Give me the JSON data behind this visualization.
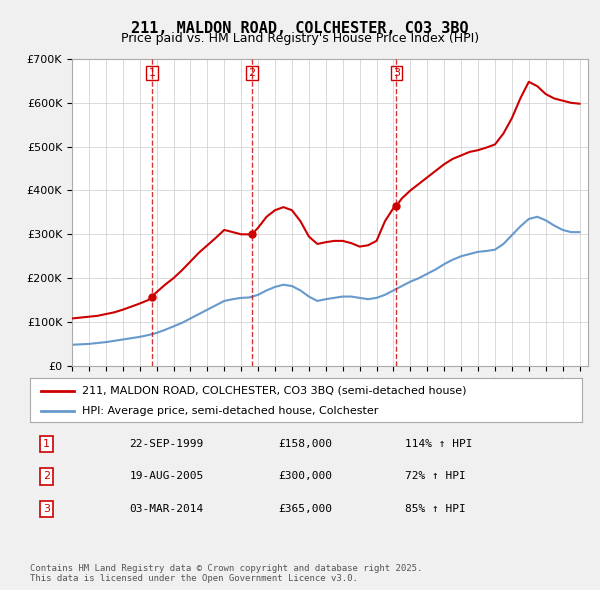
{
  "title": "211, MALDON ROAD, COLCHESTER, CO3 3BQ",
  "subtitle": "Price paid vs. HM Land Registry's House Price Index (HPI)",
  "legend_red": "211, MALDON ROAD, COLCHESTER, CO3 3BQ (semi-detached house)",
  "legend_blue": "HPI: Average price, semi-detached house, Colchester",
  "footer": "Contains HM Land Registry data © Crown copyright and database right 2025.\nThis data is licensed under the Open Government Licence v3.0.",
  "transactions": [
    {
      "num": 1,
      "date": "22-SEP-1999",
      "price": 158000,
      "hpi": "114% ↑ HPI",
      "year": 1999.73
    },
    {
      "num": 2,
      "date": "19-AUG-2005",
      "price": 300000,
      "hpi": "72% ↑ HPI",
      "year": 2005.63
    },
    {
      "num": 3,
      "date": "03-MAR-2014",
      "price": 365000,
      "hpi": "85% ↑ HPI",
      "year": 2014.17
    }
  ],
  "red_line": {
    "x": [
      1995.0,
      1995.5,
      1996.0,
      1996.5,
      1997.0,
      1997.5,
      1998.0,
      1998.5,
      1999.0,
      1999.5,
      1999.73,
      2000.0,
      2000.5,
      2001.0,
      2001.5,
      2002.0,
      2002.5,
      2003.0,
      2003.5,
      2004.0,
      2004.5,
      2005.0,
      2005.5,
      2005.63,
      2006.0,
      2006.5,
      2007.0,
      2007.5,
      2008.0,
      2008.5,
      2009.0,
      2009.5,
      2010.0,
      2010.5,
      2011.0,
      2011.5,
      2012.0,
      2012.5,
      2013.0,
      2013.5,
      2014.0,
      2014.17,
      2014.5,
      2015.0,
      2015.5,
      2016.0,
      2016.5,
      2017.0,
      2017.5,
      2018.0,
      2018.5,
      2019.0,
      2019.5,
      2020.0,
      2020.5,
      2021.0,
      2021.5,
      2022.0,
      2022.5,
      2023.0,
      2023.5,
      2024.0,
      2024.5,
      2025.0
    ],
    "y": [
      108000,
      110000,
      112000,
      114000,
      118000,
      122000,
      128000,
      135000,
      142000,
      150000,
      158000,
      168000,
      185000,
      200000,
      218000,
      238000,
      258000,
      275000,
      292000,
      310000,
      305000,
      300000,
      300000,
      300000,
      315000,
      340000,
      355000,
      362000,
      355000,
      330000,
      295000,
      278000,
      282000,
      285000,
      285000,
      280000,
      272000,
      275000,
      285000,
      330000,
      360000,
      365000,
      382000,
      400000,
      415000,
      430000,
      445000,
      460000,
      472000,
      480000,
      488000,
      492000,
      498000,
      505000,
      530000,
      565000,
      610000,
      648000,
      638000,
      620000,
      610000,
      605000,
      600000,
      598000
    ]
  },
  "blue_line": {
    "x": [
      1995.0,
      1995.5,
      1996.0,
      1996.5,
      1997.0,
      1997.5,
      1998.0,
      1998.5,
      1999.0,
      1999.5,
      2000.0,
      2000.5,
      2001.0,
      2001.5,
      2002.0,
      2002.5,
      2003.0,
      2003.5,
      2004.0,
      2004.5,
      2005.0,
      2005.5,
      2006.0,
      2006.5,
      2007.0,
      2007.5,
      2008.0,
      2008.5,
      2009.0,
      2009.5,
      2010.0,
      2010.5,
      2011.0,
      2011.5,
      2012.0,
      2012.5,
      2013.0,
      2013.5,
      2014.0,
      2014.5,
      2015.0,
      2015.5,
      2016.0,
      2016.5,
      2017.0,
      2017.5,
      2018.0,
      2018.5,
      2019.0,
      2019.5,
      2020.0,
      2020.5,
      2021.0,
      2021.5,
      2022.0,
      2022.5,
      2023.0,
      2023.5,
      2024.0,
      2024.5,
      2025.0
    ],
    "y": [
      48000,
      49000,
      50000,
      52000,
      54000,
      57000,
      60000,
      63000,
      66000,
      70000,
      75000,
      82000,
      90000,
      98000,
      108000,
      118000,
      128000,
      138000,
      148000,
      152000,
      155000,
      156000,
      162000,
      172000,
      180000,
      185000,
      182000,
      172000,
      158000,
      148000,
      152000,
      155000,
      158000,
      158000,
      155000,
      152000,
      155000,
      162000,
      172000,
      182000,
      192000,
      200000,
      210000,
      220000,
      232000,
      242000,
      250000,
      255000,
      260000,
      262000,
      265000,
      278000,
      298000,
      318000,
      335000,
      340000,
      332000,
      320000,
      310000,
      305000,
      305000
    ]
  },
  "vline_x": [
    1999.73,
    2005.63,
    2014.17
  ],
  "ylim": [
    0,
    700000
  ],
  "xlim": [
    1995.0,
    2025.5
  ],
  "yticks": [
    0,
    100000,
    200000,
    300000,
    400000,
    500000,
    600000,
    700000
  ],
  "ytick_labels": [
    "£0",
    "£100K",
    "£200K",
    "£300K",
    "£400K",
    "£500K",
    "£600K",
    "£700K"
  ],
  "background_color": "#f0f0f0",
  "plot_bg_color": "#ffffff",
  "red_color": "#cc0000",
  "blue_color": "#6699cc",
  "vline_color": "#cc0000",
  "grid_color": "#cccccc"
}
